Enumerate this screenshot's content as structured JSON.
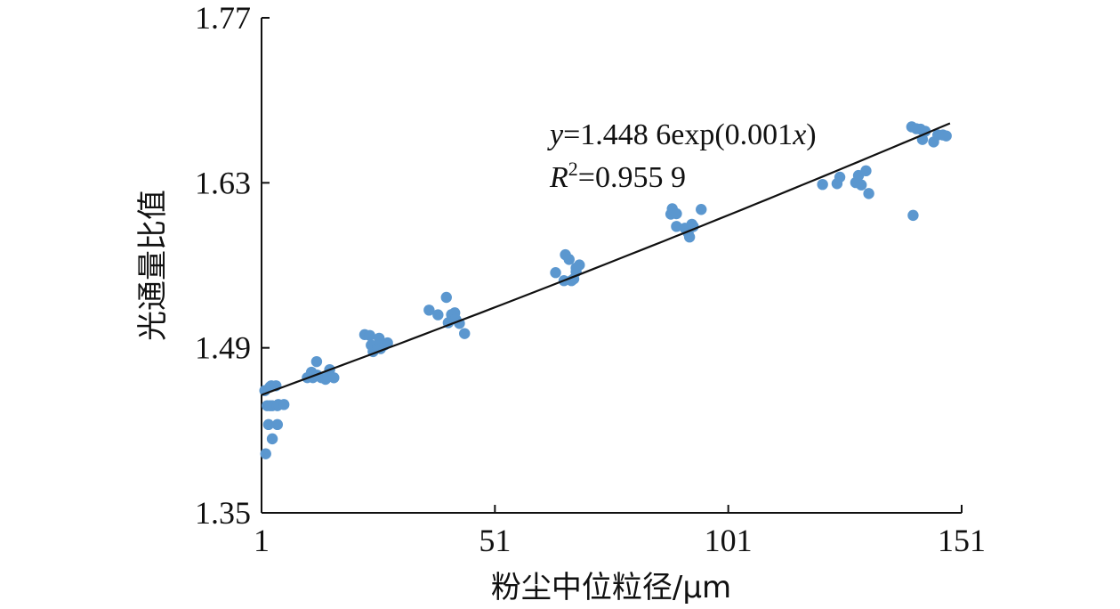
{
  "chart_data": {
    "type": "scatter",
    "xlabel": "粉尘中位粒径/μm",
    "ylabel": "光通量比值",
    "xlim": [
      1,
      151
    ],
    "ylim": [
      1.35,
      1.77
    ],
    "x_ticks": [
      1,
      51,
      101,
      151
    ],
    "x_tick_labels": [
      "1",
      "51",
      "101",
      "151"
    ],
    "y_ticks": [
      1.35,
      1.49,
      1.63,
      1.77
    ],
    "y_tick_labels": [
      "1.35",
      "1.49",
      "1.63",
      "1.77"
    ],
    "grid": false,
    "marker_color": "#5b97cf",
    "trendline": {
      "type": "exponential",
      "a": 1.4486,
      "b": 0.001,
      "x_range": [
        1,
        148.5
      ],
      "color": "#111111"
    },
    "equation": {
      "y_var": "y",
      "y_rest": "=1.448 6exp(0.001",
      "x_var": "x",
      "x_close": ")",
      "r_var": "R",
      "r_sup": "2",
      "r_rest": "=0.955 9"
    },
    "points": [
      {
        "x": 1.7,
        "y": 1.4537
      },
      {
        "x": 2.8,
        "y": 1.4568
      },
      {
        "x": 3.1,
        "y": 1.4578
      },
      {
        "x": 4.1,
        "y": 1.4578
      },
      {
        "x": 2.2,
        "y": 1.4409
      },
      {
        "x": 2.8,
        "y": 1.4409
      },
      {
        "x": 3.3,
        "y": 1.4409
      },
      {
        "x": 4.4,
        "y": 1.4409
      },
      {
        "x": 4.6,
        "y": 1.4419
      },
      {
        "x": 5.8,
        "y": 1.4419
      },
      {
        "x": 2.5,
        "y": 1.4249
      },
      {
        "x": 4.4,
        "y": 1.4249
      },
      {
        "x": 3.3,
        "y": 1.4128
      },
      {
        "x": 1.9,
        "y": 1.4001
      },
      {
        "x": 10.8,
        "y": 1.4647
      },
      {
        "x": 11.7,
        "y": 1.4693
      },
      {
        "x": 12.0,
        "y": 1.4647
      },
      {
        "x": 12.9,
        "y": 1.4668
      },
      {
        "x": 12.8,
        "y": 1.4783
      },
      {
        "x": 13.8,
        "y": 1.4647
      },
      {
        "x": 14.7,
        "y": 1.4633
      },
      {
        "x": 15.2,
        "y": 1.4658
      },
      {
        "x": 15.6,
        "y": 1.4715
      },
      {
        "x": 16.5,
        "y": 1.4646
      },
      {
        "x": 23.1,
        "y": 1.5012
      },
      {
        "x": 24.2,
        "y": 1.5005
      },
      {
        "x": 24.5,
        "y": 1.4922
      },
      {
        "x": 24.9,
        "y": 1.4868
      },
      {
        "x": 25.9,
        "y": 1.4898
      },
      {
        "x": 26.2,
        "y": 1.4981
      },
      {
        "x": 26.5,
        "y": 1.4893
      },
      {
        "x": 27.4,
        "y": 1.4925
      },
      {
        "x": 28.0,
        "y": 1.4942
      },
      {
        "x": 36.9,
        "y": 1.522
      },
      {
        "x": 38.8,
        "y": 1.518
      },
      {
        "x": 40.6,
        "y": 1.5328
      },
      {
        "x": 41.0,
        "y": 1.5113
      },
      {
        "x": 41.7,
        "y": 1.5182
      },
      {
        "x": 42.4,
        "y": 1.5197
      },
      {
        "x": 42.6,
        "y": 1.5142
      },
      {
        "x": 43.4,
        "y": 1.5107
      },
      {
        "x": 44.5,
        "y": 1.5021
      },
      {
        "x": 64.0,
        "y": 1.5538
      },
      {
        "x": 65.8,
        "y": 1.547
      },
      {
        "x": 66.1,
        "y": 1.569
      },
      {
        "x": 66.9,
        "y": 1.565
      },
      {
        "x": 67.4,
        "y": 1.547
      },
      {
        "x": 67.9,
        "y": 1.5485
      },
      {
        "x": 68.4,
        "y": 1.5545
      },
      {
        "x": 68.4,
        "y": 1.5578
      },
      {
        "x": 69.1,
        "y": 1.5603
      },
      {
        "x": 88.7,
        "y": 1.6034
      },
      {
        "x": 89.0,
        "y": 1.608
      },
      {
        "x": 89.9,
        "y": 1.6038
      },
      {
        "x": 89.9,
        "y": 1.593
      },
      {
        "x": 91.7,
        "y": 1.5915
      },
      {
        "x": 92.4,
        "y": 1.5876
      },
      {
        "x": 92.7,
        "y": 1.584
      },
      {
        "x": 93.2,
        "y": 1.5948
      },
      {
        "x": 93.5,
        "y": 1.593
      },
      {
        "x": 95.2,
        "y": 1.6074
      },
      {
        "x": 121.2,
        "y": 1.6286
      },
      {
        "x": 124.3,
        "y": 1.6293
      },
      {
        "x": 124.9,
        "y": 1.6348
      },
      {
        "x": 128.3,
        "y": 1.6302
      },
      {
        "x": 128.9,
        "y": 1.6362
      },
      {
        "x": 129.5,
        "y": 1.6282
      },
      {
        "x": 130.5,
        "y": 1.6402
      },
      {
        "x": 131.1,
        "y": 1.6209
      },
      {
        "x": 140.3,
        "y": 1.6775
      },
      {
        "x": 141.3,
        "y": 1.6759
      },
      {
        "x": 142.2,
        "y": 1.6755
      },
      {
        "x": 142.6,
        "y": 1.6668
      },
      {
        "x": 143.2,
        "y": 1.6737
      },
      {
        "x": 145.0,
        "y": 1.6647
      },
      {
        "x": 145.9,
        "y": 1.6707
      },
      {
        "x": 147.0,
        "y": 1.6706
      },
      {
        "x": 147.7,
        "y": 1.6698
      },
      {
        "x": 140.6,
        "y": 1.6024
      }
    ]
  }
}
